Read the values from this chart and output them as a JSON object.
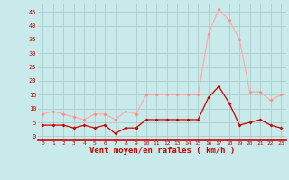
{
  "hours": [
    0,
    1,
    2,
    3,
    4,
    5,
    6,
    7,
    8,
    9,
    10,
    11,
    12,
    13,
    14,
    15,
    16,
    17,
    18,
    19,
    20,
    21,
    22,
    23
  ],
  "wind_avg": [
    4,
    4,
    4,
    3,
    4,
    3,
    4,
    1,
    3,
    3,
    6,
    6,
    6,
    6,
    6,
    6,
    14,
    18,
    12,
    4,
    5,
    6,
    4,
    3
  ],
  "wind_gust": [
    8,
    9,
    8,
    7,
    6,
    8,
    8,
    6,
    9,
    8,
    15,
    15,
    15,
    15,
    15,
    15,
    37,
    46,
    42,
    35,
    16,
    16,
    13,
    15
  ],
  "line_color_avg": "#cc0000",
  "line_color_gust": "#ffaaaa",
  "marker_color_avg": "#cc0000",
  "marker_color_gust": "#ff8888",
  "bg_color": "#c8eaea",
  "grid_color": "#aacccc",
  "xlabel": "Vent moyen/en rafales ( km/h )",
  "xlabel_color": "#cc0000",
  "tick_color": "#cc0000",
  "axis_color": "#cc0000",
  "ytick_labels": [
    "0",
    "5",
    "10",
    "15",
    "20",
    "25",
    "30",
    "35",
    "40",
    "45"
  ],
  "ytick_values": [
    0,
    5,
    10,
    15,
    20,
    25,
    30,
    35,
    40,
    45
  ],
  "ylim": [
    -1.5,
    48
  ],
  "xlim": [
    -0.5,
    23.5
  ]
}
